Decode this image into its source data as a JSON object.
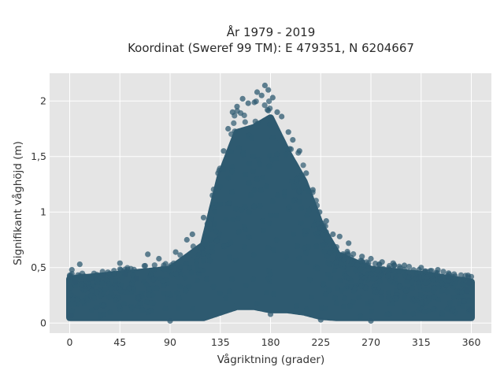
{
  "chart_data": {
    "type": "scatter",
    "title": "År 1979 - 2019",
    "subtitle": "Koordinat (Sweref 99 TM): E 479351, N 6204667",
    "xlabel": "Vågriktning (grader)",
    "ylabel": "Signifikant våghöjd (m)",
    "xlim": [
      -18,
      378
    ],
    "ylim": [
      -0.09,
      2.25
    ],
    "xticks": [
      0,
      45,
      90,
      135,
      180,
      225,
      270,
      315,
      360
    ],
    "xtick_labels": [
      "0",
      "45",
      "90",
      "135",
      "180",
      "225",
      "270",
      "315",
      "360"
    ],
    "yticks": [
      0,
      0.5,
      1,
      1.5,
      2
    ],
    "ytick_labels": [
      "0",
      "0,5",
      "1",
      "1,5",
      "2"
    ],
    "grid": true,
    "legend": "none",
    "marker_color": "#2e5a70",
    "background": "#e5e5e5",
    "envelope": {
      "x": [
        0,
        45,
        90,
        120,
        135,
        150,
        165,
        180,
        195,
        210,
        225,
        240,
        270,
        315,
        360
      ],
      "y_max": [
        0.45,
        0.5,
        0.55,
        0.8,
        1.5,
        1.95,
        2.0,
        2.1,
        1.75,
        1.45,
        1.0,
        0.7,
        0.55,
        0.5,
        0.42
      ],
      "y_min": [
        0.05,
        0.05,
        0.05,
        0.05,
        0.1,
        0.15,
        0.15,
        0.12,
        0.12,
        0.1,
        0.06,
        0.05,
        0.05,
        0.05,
        0.05
      ]
    },
    "points": [
      {
        "x": 0,
        "y": 0.42
      },
      {
        "x": 2,
        "y": 0.48
      },
      {
        "x": 9,
        "y": 0.53
      },
      {
        "x": 5,
        "y": 0.37
      },
      {
        "x": 30,
        "y": 0.43
      },
      {
        "x": 45,
        "y": 0.54
      },
      {
        "x": 50,
        "y": 0.44
      },
      {
        "x": 60,
        "y": 0.4
      },
      {
        "x": 70,
        "y": 0.62
      },
      {
        "x": 80,
        "y": 0.58
      },
      {
        "x": 95,
        "y": 0.64
      },
      {
        "x": 105,
        "y": 0.75
      },
      {
        "x": 110,
        "y": 0.8
      },
      {
        "x": 120,
        "y": 0.95
      },
      {
        "x": 128,
        "y": 1.15
      },
      {
        "x": 133,
        "y": 1.35
      },
      {
        "x": 138,
        "y": 1.55
      },
      {
        "x": 142,
        "y": 1.75
      },
      {
        "x": 146,
        "y": 1.9
      },
      {
        "x": 150,
        "y": 1.95
      },
      {
        "x": 155,
        "y": 2.02
      },
      {
        "x": 160,
        "y": 1.98
      },
      {
        "x": 168,
        "y": 2.08
      },
      {
        "x": 172,
        "y": 2.05
      },
      {
        "x": 175,
        "y": 2.14
      },
      {
        "x": 178,
        "y": 2.1
      },
      {
        "x": 182,
        "y": 2.03
      },
      {
        "x": 186,
        "y": 1.9
      },
      {
        "x": 190,
        "y": 1.86
      },
      {
        "x": 196,
        "y": 1.72
      },
      {
        "x": 200,
        "y": 1.65
      },
      {
        "x": 206,
        "y": 1.55
      },
      {
        "x": 212,
        "y": 1.35
      },
      {
        "x": 218,
        "y": 1.2
      },
      {
        "x": 224,
        "y": 1.0
      },
      {
        "x": 230,
        "y": 0.92
      },
      {
        "x": 236,
        "y": 0.8
      },
      {
        "x": 242,
        "y": 0.78
      },
      {
        "x": 250,
        "y": 0.72
      },
      {
        "x": 262,
        "y": 0.6
      },
      {
        "x": 270,
        "y": 0.58
      },
      {
        "x": 280,
        "y": 0.55
      },
      {
        "x": 290,
        "y": 0.54
      },
      {
        "x": 300,
        "y": 0.52
      },
      {
        "x": 315,
        "y": 0.5
      },
      {
        "x": 330,
        "y": 0.48
      },
      {
        "x": 340,
        "y": 0.44
      },
      {
        "x": 357,
        "y": 0.43
      },
      {
        "x": 358,
        "y": 0.36
      },
      {
        "x": 356,
        "y": 0.29
      },
      {
        "x": 359,
        "y": 0.12
      },
      {
        "x": 1,
        "y": 0.07
      },
      {
        "x": 90,
        "y": 0.02
      },
      {
        "x": 180,
        "y": 0.08
      },
      {
        "x": 225,
        "y": 0.03
      },
      {
        "x": 270,
        "y": 0.02
      }
    ]
  }
}
